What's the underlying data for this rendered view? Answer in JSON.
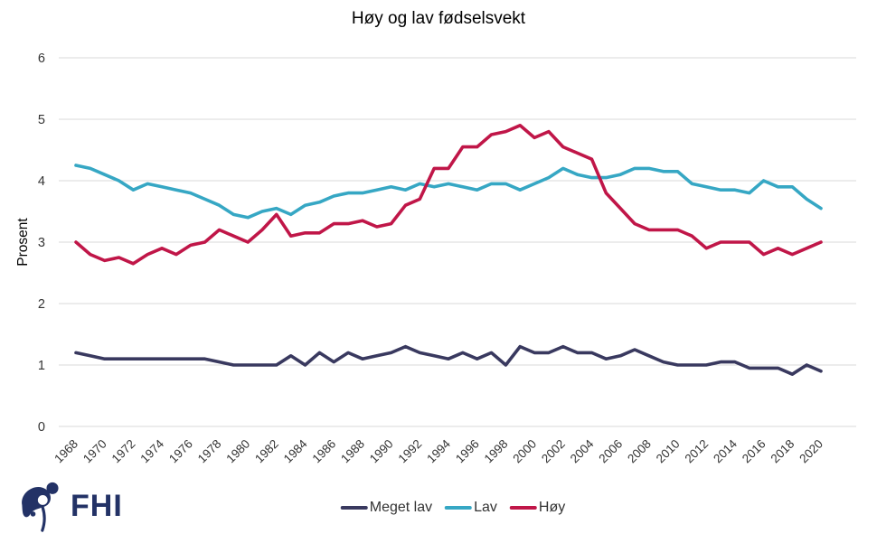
{
  "title": "Høy og lav fødselsvekt",
  "y_axis_label": "Prosent",
  "logo": {
    "text": "FHI"
  },
  "colors": {
    "grid": "#d9d9d9",
    "axis_text": "#333333",
    "title_text": "#000000",
    "logo_navy": "#233266",
    "background": "#ffffff"
  },
  "legend": {
    "items": [
      "Meget lav",
      "Lav",
      "Høy"
    ]
  },
  "chart_data": {
    "type": "line",
    "title": "Høy og lav fødselsvekt",
    "xlabel": "",
    "ylabel": "Prosent",
    "ylim": [
      0,
      6
    ],
    "ytick_step": 1,
    "x_tick_step": 2,
    "grid": true,
    "legend_position": "bottom",
    "x": [
      1968,
      1969,
      1970,
      1971,
      1972,
      1973,
      1974,
      1975,
      1976,
      1977,
      1978,
      1979,
      1980,
      1981,
      1982,
      1983,
      1984,
      1985,
      1986,
      1987,
      1988,
      1989,
      1990,
      1991,
      1992,
      1993,
      1994,
      1995,
      1996,
      1997,
      1998,
      1999,
      2000,
      2001,
      2002,
      2003,
      2004,
      2005,
      2006,
      2007,
      2008,
      2009,
      2010,
      2011,
      2012,
      2013,
      2014,
      2015,
      2016,
      2017,
      2018,
      2019,
      2020
    ],
    "series": [
      {
        "name": "Meget lav",
        "color": "#39395f",
        "values": [
          1.2,
          1.15,
          1.1,
          1.1,
          1.1,
          1.1,
          1.1,
          1.1,
          1.1,
          1.1,
          1.05,
          1.0,
          1.0,
          1.0,
          1.0,
          1.15,
          1.0,
          1.2,
          1.05,
          1.2,
          1.1,
          1.15,
          1.2,
          1.3,
          1.2,
          1.15,
          1.1,
          1.2,
          1.1,
          1.2,
          1.0,
          1.3,
          1.2,
          1.2,
          1.3,
          1.2,
          1.2,
          1.1,
          1.15,
          1.25,
          1.15,
          1.05,
          1.0,
          1.0,
          1.0,
          1.05,
          1.05,
          0.95,
          0.95,
          0.95,
          0.85,
          1.0,
          0.9
        ]
      },
      {
        "name": "Lav",
        "color": "#36a7c4",
        "values": [
          4.25,
          4.2,
          4.1,
          4.0,
          3.85,
          3.95,
          3.9,
          3.85,
          3.8,
          3.7,
          3.6,
          3.45,
          3.4,
          3.5,
          3.55,
          3.45,
          3.6,
          3.65,
          3.75,
          3.8,
          3.8,
          3.85,
          3.9,
          3.85,
          3.95,
          3.9,
          3.95,
          3.9,
          3.85,
          3.95,
          3.95,
          3.85,
          3.95,
          4.05,
          4.2,
          4.1,
          4.05,
          4.05,
          4.1,
          4.2,
          4.2,
          4.15,
          4.15,
          3.95,
          3.9,
          3.85,
          3.85,
          3.8,
          4.0,
          3.9,
          3.9,
          3.7,
          3.55
        ]
      },
      {
        "name": "Høy",
        "color": "#c01648",
        "values": [
          3.0,
          2.8,
          2.7,
          2.75,
          2.65,
          2.8,
          2.9,
          2.8,
          2.95,
          3.0,
          3.2,
          3.1,
          3.0,
          3.2,
          3.45,
          3.1,
          3.15,
          3.15,
          3.3,
          3.3,
          3.35,
          3.25,
          3.3,
          3.6,
          3.7,
          4.2,
          4.2,
          4.55,
          4.55,
          4.75,
          4.8,
          4.9,
          4.7,
          4.8,
          4.55,
          4.45,
          4.35,
          3.8,
          3.55,
          3.3,
          3.2,
          3.2,
          3.2,
          3.1,
          2.9,
          3.0,
          3.0,
          3.0,
          2.8,
          2.9,
          2.8,
          2.9,
          3.0
        ]
      }
    ]
  }
}
